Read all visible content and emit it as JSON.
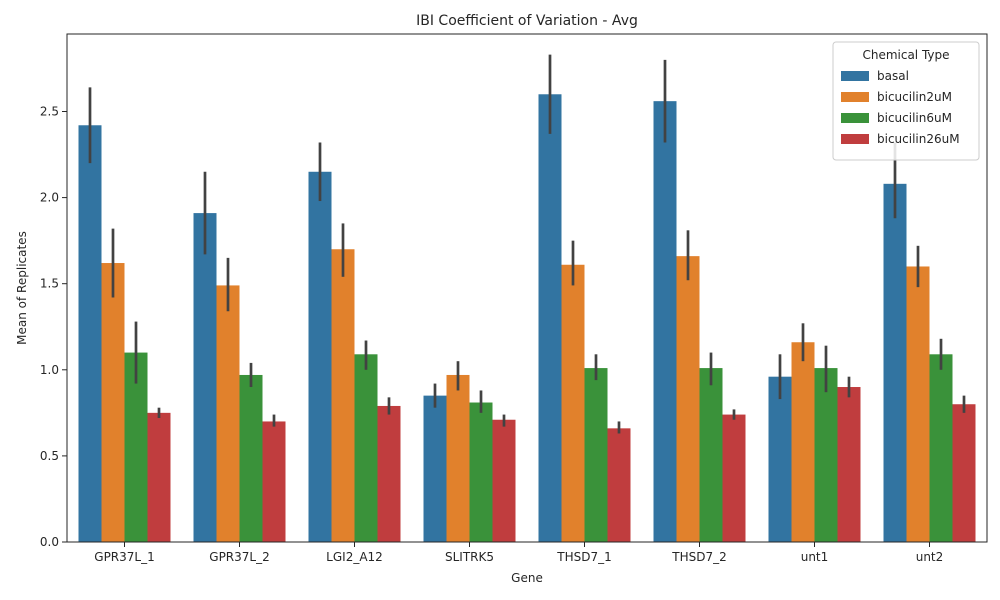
{
  "chart_data": {
    "type": "bar",
    "title": "IBI Coefficient of Variation - Avg",
    "xlabel": "Gene",
    "ylabel": "Mean of Replicates",
    "ylim": [
      0,
      2.95
    ],
    "yticks": [
      "0.0",
      "0.5",
      "1.0",
      "1.5",
      "2.0",
      "2.5"
    ],
    "categories": [
      "GPR37L_1",
      "GPR37L_2",
      "LGI2_A12",
      "SLITRK5",
      "THSD7_1",
      "THSD7_2",
      "unt1",
      "unt2"
    ],
    "legend": {
      "title": "Chemical Type",
      "position": "top-right"
    },
    "series": [
      {
        "name": "basal",
        "color": "#3274a1",
        "values": [
          2.42,
          1.91,
          2.15,
          0.85,
          2.6,
          2.56,
          0.96,
          2.08
        ],
        "ci_low": [
          2.2,
          1.67,
          1.98,
          0.78,
          2.37,
          2.32,
          0.83,
          1.88
        ],
        "ci_high": [
          2.64,
          2.15,
          2.32,
          0.92,
          2.83,
          2.8,
          1.09,
          2.32
        ]
      },
      {
        "name": "bicucilin2uM",
        "color": "#e1812c",
        "values": [
          1.62,
          1.49,
          1.7,
          0.97,
          1.61,
          1.66,
          1.16,
          1.6
        ],
        "ci_low": [
          1.42,
          1.34,
          1.54,
          0.88,
          1.49,
          1.52,
          1.05,
          1.48
        ],
        "ci_high": [
          1.82,
          1.65,
          1.85,
          1.05,
          1.75,
          1.81,
          1.27,
          1.72
        ]
      },
      {
        "name": "bicucilin6uM",
        "color": "#3a923a",
        "values": [
          1.1,
          0.97,
          1.09,
          0.81,
          1.01,
          1.01,
          1.01,
          1.09
        ],
        "ci_low": [
          0.92,
          0.9,
          1.0,
          0.75,
          0.94,
          0.91,
          0.87,
          1.0
        ],
        "ci_high": [
          1.28,
          1.04,
          1.17,
          0.88,
          1.09,
          1.1,
          1.14,
          1.18
        ]
      },
      {
        "name": "bicucilin26uM",
        "color": "#c03d3e",
        "values": [
          0.75,
          0.7,
          0.79,
          0.71,
          0.66,
          0.74,
          0.9,
          0.8
        ],
        "ci_low": [
          0.72,
          0.67,
          0.74,
          0.67,
          0.63,
          0.71,
          0.84,
          0.75
        ],
        "ci_high": [
          0.78,
          0.74,
          0.84,
          0.74,
          0.7,
          0.77,
          0.96,
          0.85
        ]
      }
    ]
  }
}
